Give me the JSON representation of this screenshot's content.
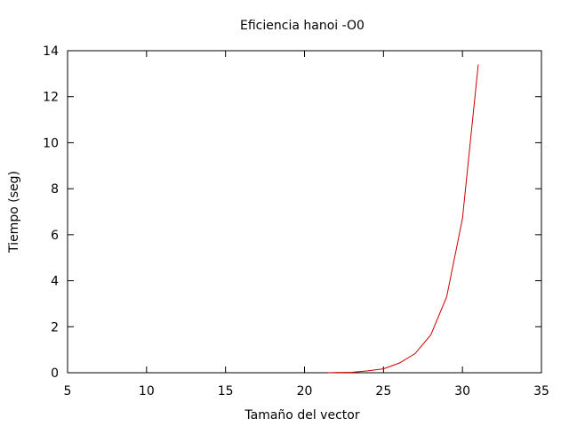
{
  "chart_data": {
    "type": "line",
    "title": "Eficiencia hanoi -O0",
    "xlabel": "Tamaño del vector",
    "ylabel": "Tiempo (seg)",
    "xlim": [
      5,
      35
    ],
    "ylim": [
      0,
      14
    ],
    "xticks": [
      5,
      10,
      15,
      20,
      25,
      30,
      35
    ],
    "yticks": [
      0,
      2,
      4,
      6,
      8,
      10,
      12,
      14
    ],
    "grid": false,
    "series": [
      {
        "color": "#cc0000",
        "x": [
          21.5,
          22,
          23,
          24,
          25,
          26,
          27,
          28,
          29,
          30,
          31
        ],
        "y": [
          0.0,
          0.01,
          0.02,
          0.08,
          0.17,
          0.42,
          0.83,
          1.65,
          3.3,
          6.7,
          13.4
        ]
      }
    ]
  }
}
